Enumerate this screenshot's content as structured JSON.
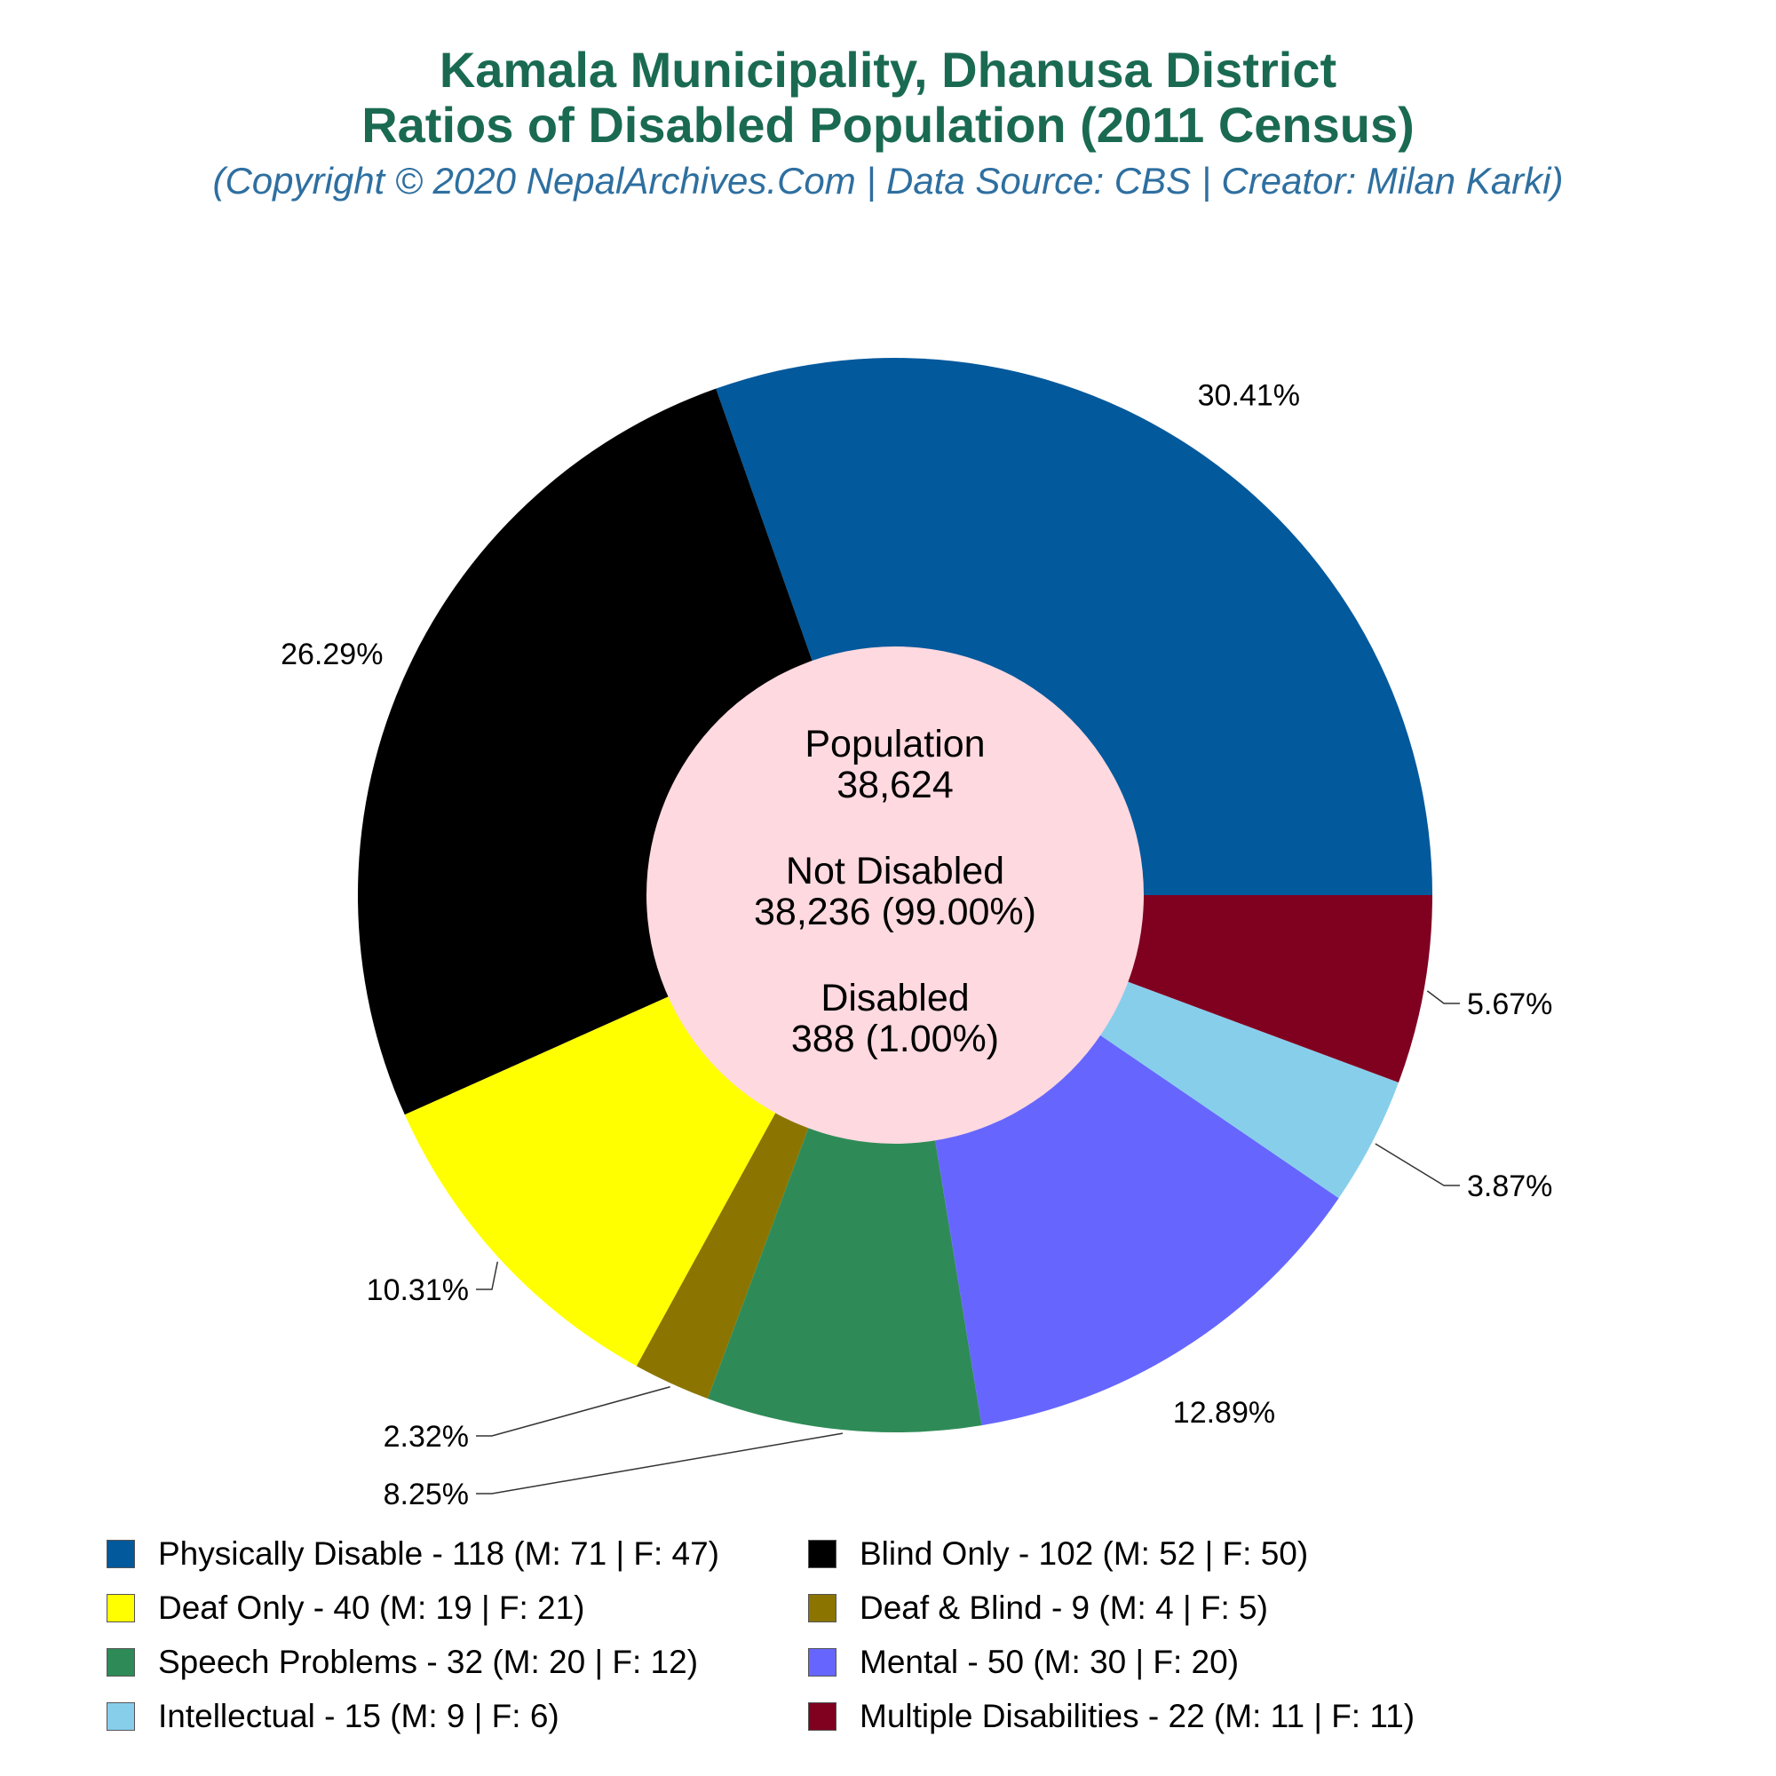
{
  "header": {
    "title_line1": "Kamala Municipality, Dhanusa District",
    "title_line2": "Ratios of Disabled Population (2011 Census)",
    "subtitle": "(Copyright © 2020 NepalArchives.Com | Data Source: CBS | Creator: Milan Karki)"
  },
  "center": {
    "population_label": "Population",
    "population_value": "38,624",
    "not_disabled_label": "Not Disabled",
    "not_disabled_value": "38,236 (99.00%)",
    "disabled_label": "Disabled",
    "disabled_value": "388 (1.00%)"
  },
  "chart_data": {
    "type": "pie",
    "style": "donut",
    "categories": [
      "Physically Disable",
      "Blind Only",
      "Deaf Only",
      "Deaf & Blind",
      "Speech Problems",
      "Mental",
      "Intellectual",
      "Multiple Disabilities"
    ],
    "values": [
      118,
      102,
      40,
      9,
      32,
      50,
      15,
      22
    ],
    "male": [
      71,
      52,
      19,
      4,
      20,
      30,
      9,
      11
    ],
    "female": [
      47,
      50,
      21,
      5,
      12,
      20,
      6,
      11
    ],
    "percent_labels": [
      "30.41%",
      "26.29%",
      "10.31%",
      "2.32%",
      "8.25%",
      "12.89%",
      "3.87%",
      "5.67%"
    ],
    "colors": [
      "#02599c",
      "#000000",
      "#ffff00",
      "#8b7500",
      "#2e8b57",
      "#6666ff",
      "#87ceeb",
      "#800020"
    ],
    "center_fill": "#ffd9e0",
    "legend": [
      "Physically Disable - 118 (M: 71 | F: 47)",
      "Blind Only - 102 (M: 52 | F: 50)",
      "Deaf Only - 40 (M: 19 | F: 21)",
      "Deaf & Blind - 9 (M: 4 | F: 5)",
      "Speech Problems - 32 (M: 20 | F: 12)",
      "Mental - 50 (M: 30 | F: 20)",
      "Intellectual - 15 (M: 9 | F: 6)",
      "Multiple Disabilities - 22 (M: 11 | F: 11)"
    ],
    "legend_placement": "bottom"
  }
}
